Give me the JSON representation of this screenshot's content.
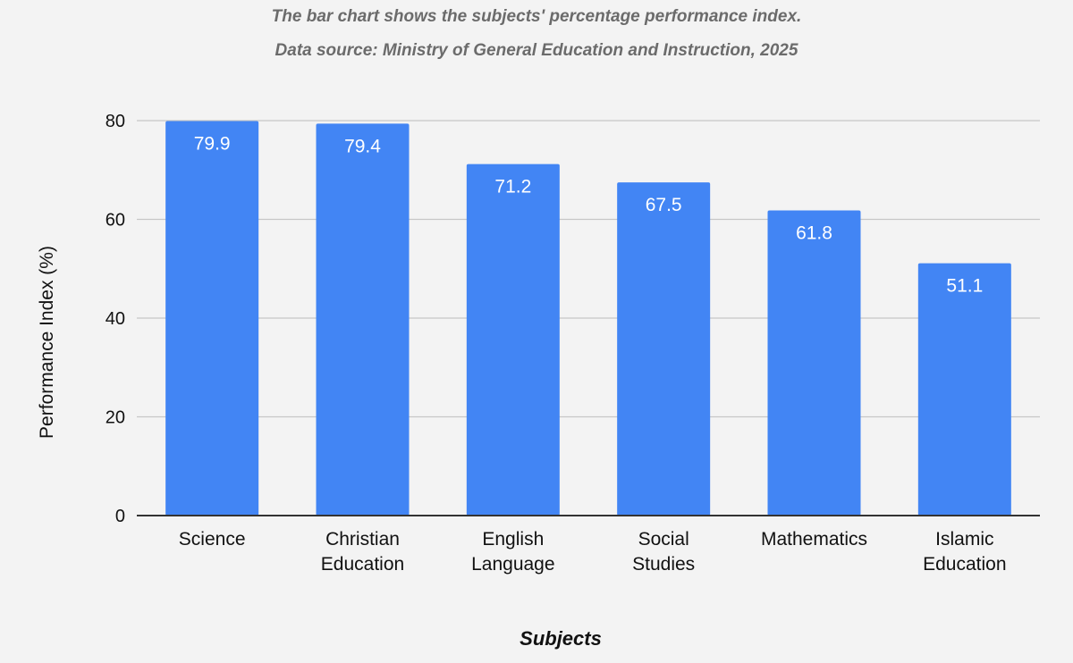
{
  "chart_data": {
    "type": "bar",
    "title": "The bar chart shows the subjects' percentage performance index.",
    "subtitle": "Data source: Ministry of General Education and Instruction, 2025",
    "xlabel": "Subjects",
    "ylabel": "Performance Index (%)",
    "categories": [
      [
        "Science"
      ],
      [
        "Christian",
        "Education"
      ],
      [
        "English",
        "Language"
      ],
      [
        "Social",
        "Studies"
      ],
      [
        "Mathematics"
      ],
      [
        "Islamic",
        "Education"
      ]
    ],
    "values": [
      79.9,
      79.4,
      71.2,
      67.5,
      61.8,
      51.1
    ],
    "data_labels": [
      "79.9",
      "79.4",
      "71.2",
      "67.5",
      "61.8",
      "51.1"
    ],
    "y_ticks": [
      0,
      20,
      40,
      60,
      80
    ],
    "ylim": [
      0,
      80
    ],
    "grid": true,
    "legend": "none",
    "colors": {
      "bar": "#4285f4",
      "data_label": "#ffffff",
      "grid": "#c6c6c6",
      "axis": "#333333",
      "tick_label": "#111111",
      "background": "#f3f3f3"
    }
  }
}
